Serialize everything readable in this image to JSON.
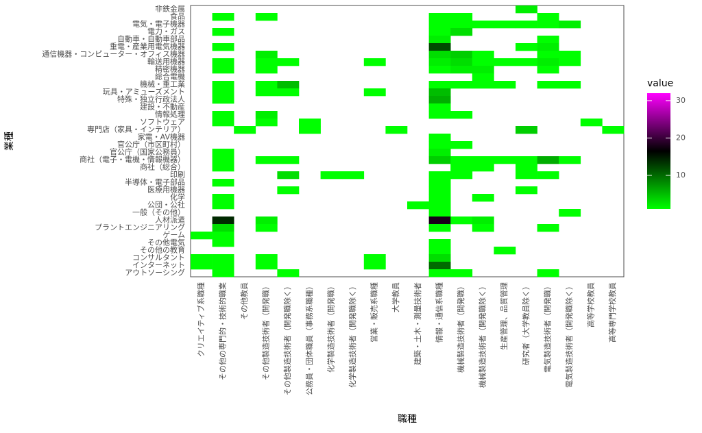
{
  "chart_data": {
    "type": "heatmap",
    "x_label": "職種",
    "y_label": "業種",
    "legend_title": "value",
    "categories": [
      "クリエイティブ系職種",
      "その他の専門的・技術的職業",
      "その他教員",
      "その他製造技術者（開発職）",
      "その他製造技術者（開発職除く）",
      "公務員・団体職員（事務系職種）",
      "化学製造技術者（開発職）",
      "化学製造技術者（開発職除く）",
      "営業・販売系職種",
      "大学教員",
      "建築・土木・測量技術者",
      "情報・通信系職種",
      "機械製造技術者（開発職）",
      "機械製造技術者（開発職除く）",
      "生産管理、品質管理",
      "研究者（大学教員除く）",
      "電気製造技術者（開発職）",
      "電気製造技術者（開発職除く）",
      "高等学校教員",
      "高等専門学校教員"
    ],
    "rows": [
      "非鉄金属",
      "食品",
      "電気・電子機器",
      "電力・ガス",
      "自動車・自動車部品",
      "重電・産業用電気機器",
      "通信機器・コンピューター・オフィス機器",
      "輸送用機器",
      "精密機器",
      "総合電機",
      "機械・重工業",
      "玩具・アミューズメント",
      "特殊・独立行政法人",
      "建設・不動産",
      "情報処理",
      "ソフトウェア",
      "専門店（家具・インテリア）",
      "家電・AV機器",
      "官公庁（市区町村）",
      "官公庁（国家公務員）",
      "商社（電子・電機・情報機器）",
      "商社（総合）",
      "印刷",
      "半導体・電子部品",
      "医療用機器",
      "化学",
      "公団・公社",
      "一般（その他）",
      "人材派遣",
      "プラントエンジニアリング",
      "ゲーム",
      "その他電気",
      "その他の教育",
      "コンサルタント",
      "インターネット",
      "アウトソーシング"
    ],
    "values": [
      [
        null,
        null,
        null,
        null,
        null,
        null,
        null,
        null,
        null,
        null,
        null,
        null,
        null,
        null,
        null,
        2,
        null,
        null,
        null,
        null
      ],
      [
        null,
        1,
        null,
        1,
        null,
        null,
        null,
        null,
        null,
        null,
        null,
        1,
        1,
        null,
        null,
        null,
        1,
        null,
        null,
        null
      ],
      [
        null,
        null,
        null,
        null,
        null,
        null,
        null,
        null,
        null,
        null,
        null,
        1,
        1,
        1,
        1,
        1,
        1,
        2,
        null,
        null
      ],
      [
        null,
        1,
        null,
        null,
        null,
        null,
        null,
        null,
        null,
        null,
        null,
        1,
        3,
        null,
        null,
        null,
        null,
        null,
        null,
        null
      ],
      [
        null,
        null,
        null,
        null,
        null,
        null,
        null,
        null,
        null,
        null,
        null,
        2,
        null,
        null,
        null,
        null,
        1,
        null,
        null,
        null
      ],
      [
        null,
        1,
        null,
        null,
        null,
        null,
        null,
        null,
        null,
        null,
        null,
        12,
        null,
        null,
        null,
        1,
        2,
        null,
        null,
        null
      ],
      [
        null,
        null,
        null,
        2,
        null,
        null,
        null,
        null,
        null,
        null,
        null,
        3,
        4,
        1,
        null,
        null,
        1,
        1,
        null,
        null
      ],
      [
        null,
        1,
        null,
        1,
        1,
        null,
        null,
        null,
        1,
        null,
        null,
        2,
        3,
        1,
        1,
        1,
        2,
        1,
        null,
        null
      ],
      [
        null,
        1,
        null,
        1,
        null,
        null,
        null,
        null,
        null,
        null,
        null,
        1,
        2,
        2,
        null,
        null,
        1,
        null,
        null,
        null
      ],
      [
        null,
        null,
        null,
        null,
        null,
        null,
        null,
        null,
        null,
        null,
        null,
        null,
        null,
        1,
        null,
        null,
        null,
        null,
        null,
        null
      ],
      [
        null,
        1,
        null,
        1,
        5,
        null,
        null,
        null,
        null,
        null,
        null,
        1,
        1,
        1,
        1,
        null,
        1,
        1,
        null,
        null
      ],
      [
        null,
        1,
        null,
        1,
        1,
        null,
        null,
        null,
        1,
        null,
        null,
        5,
        null,
        null,
        null,
        null,
        null,
        null,
        null,
        null
      ],
      [
        null,
        1,
        null,
        null,
        null,
        null,
        null,
        null,
        null,
        null,
        null,
        6,
        null,
        null,
        null,
        null,
        null,
        null,
        null,
        null
      ],
      [
        null,
        null,
        null,
        null,
        null,
        null,
        null,
        null,
        null,
        null,
        null,
        1,
        null,
        null,
        null,
        null,
        null,
        null,
        null,
        null
      ],
      [
        null,
        1,
        null,
        2,
        null,
        null,
        null,
        null,
        null,
        null,
        null,
        1,
        1,
        null,
        null,
        null,
        null,
        null,
        null,
        null
      ],
      [
        null,
        1,
        null,
        1,
        null,
        1,
        null,
        null,
        null,
        null,
        null,
        null,
        null,
        null,
        null,
        null,
        null,
        null,
        1,
        null
      ],
      [
        null,
        null,
        1,
        null,
        null,
        1,
        null,
        null,
        null,
        1,
        null,
        null,
        null,
        null,
        null,
        4,
        null,
        null,
        null,
        1
      ],
      [
        null,
        null,
        null,
        null,
        null,
        null,
        null,
        null,
        null,
        null,
        null,
        1,
        null,
        null,
        null,
        null,
        null,
        null,
        null,
        null
      ],
      [
        null,
        null,
        null,
        null,
        null,
        null,
        null,
        null,
        null,
        null,
        null,
        1,
        1,
        null,
        null,
        null,
        null,
        null,
        null,
        null
      ],
      [
        null,
        1,
        null,
        null,
        null,
        null,
        null,
        null,
        null,
        null,
        null,
        2,
        null,
        null,
        null,
        null,
        null,
        null,
        null,
        null
      ],
      [
        null,
        1,
        null,
        1,
        1,
        null,
        null,
        null,
        null,
        null,
        null,
        4,
        1,
        1,
        1,
        1,
        6,
        1,
        null,
        null
      ],
      [
        null,
        1,
        null,
        null,
        null,
        null,
        null,
        null,
        null,
        null,
        null,
        null,
        1,
        1,
        null,
        1,
        null,
        null,
        null,
        null
      ],
      [
        null,
        null,
        null,
        null,
        3,
        null,
        1,
        1,
        null,
        null,
        null,
        1,
        1,
        null,
        null,
        1,
        1,
        null,
        null,
        null
      ],
      [
        null,
        1,
        null,
        null,
        null,
        null,
        null,
        null,
        null,
        null,
        null,
        1,
        null,
        null,
        null,
        null,
        null,
        null,
        null,
        null
      ],
      [
        null,
        null,
        null,
        null,
        1,
        null,
        null,
        null,
        null,
        null,
        null,
        1,
        null,
        null,
        null,
        1,
        null,
        null,
        null,
        null
      ],
      [
        null,
        1,
        null,
        null,
        null,
        null,
        null,
        null,
        null,
        null,
        null,
        1,
        null,
        1,
        null,
        null,
        null,
        null,
        null,
        null
      ],
      [
        null,
        1,
        null,
        null,
        null,
        null,
        null,
        null,
        null,
        null,
        1,
        1,
        null,
        null,
        null,
        null,
        null,
        null,
        null,
        null
      ],
      [
        null,
        null,
        null,
        null,
        null,
        null,
        null,
        null,
        null,
        null,
        null,
        1,
        null,
        null,
        null,
        null,
        null,
        1,
        null,
        null
      ],
      [
        null,
        14,
        null,
        2,
        null,
        null,
        null,
        null,
        null,
        null,
        null,
        18,
        1,
        2,
        null,
        null,
        null,
        null,
        null,
        null
      ],
      [
        null,
        3,
        null,
        1,
        null,
        null,
        null,
        null,
        null,
        null,
        null,
        1,
        null,
        1,
        null,
        null,
        1,
        null,
        null,
        null
      ],
      [
        1,
        1,
        null,
        null,
        null,
        null,
        null,
        null,
        null,
        null,
        null,
        null,
        null,
        null,
        null,
        null,
        null,
        null,
        null,
        null
      ],
      [
        null,
        1,
        null,
        null,
        null,
        null,
        null,
        null,
        null,
        null,
        null,
        1,
        null,
        null,
        null,
        null,
        null,
        null,
        null,
        null
      ],
      [
        null,
        null,
        null,
        null,
        null,
        null,
        null,
        null,
        null,
        null,
        null,
        1,
        null,
        null,
        1,
        null,
        null,
        null,
        null,
        null
      ],
      [
        1,
        1,
        null,
        1,
        null,
        null,
        null,
        null,
        1,
        null,
        null,
        3,
        null,
        null,
        null,
        null,
        null,
        null,
        null,
        null
      ],
      [
        1,
        1,
        null,
        1,
        null,
        null,
        null,
        null,
        1,
        null,
        null,
        10,
        null,
        null,
        null,
        null,
        null,
        null,
        null,
        null
      ],
      [
        null,
        1,
        null,
        null,
        1,
        null,
        null,
        null,
        null,
        null,
        null,
        1,
        1,
        null,
        null,
        null,
        1,
        null,
        null,
        null
      ]
    ],
    "colorscale": {
      "low": "#00ff00",
      "mid": "#000000",
      "high": "#ff00ff",
      "limits": [
        1,
        32
      ],
      "ticks": [
        10,
        20,
        30
      ]
    }
  }
}
